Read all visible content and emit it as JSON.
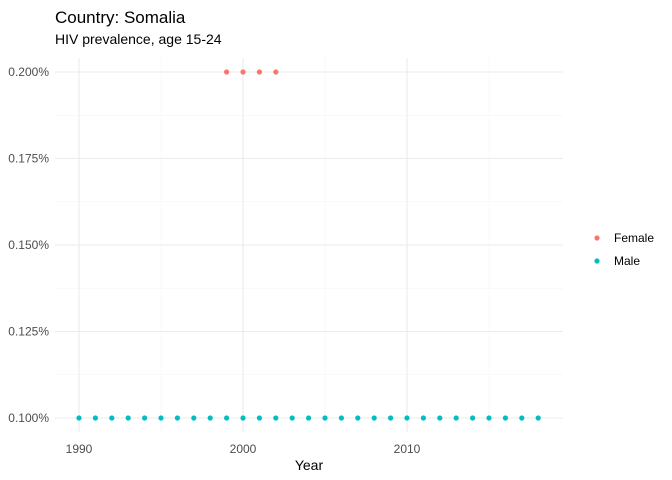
{
  "chart_data": {
    "type": "scatter",
    "title": "Country: Somalia",
    "subtitle": "HIV prevalence, age 15-24",
    "xlabel": "Year",
    "ylabel": "",
    "xlim": [
      1989,
      2019
    ],
    "ylim": [
      0.1,
      0.2
    ],
    "x_ticks": [
      1990,
      2000,
      2010
    ],
    "x_tick_labels": [
      "1990",
      "2000",
      "2010"
    ],
    "y_ticks": [
      0.1,
      0.125,
      0.15,
      0.175,
      0.2
    ],
    "y_tick_labels": [
      "0.100%",
      "0.125%",
      "0.150%",
      "0.175%",
      "0.200%"
    ],
    "grid": true,
    "legend_position": "right",
    "series": [
      {
        "name": "Female",
        "color": "#F8766D",
        "x": [
          1999,
          2000,
          2001,
          2002
        ],
        "y": [
          0.2,
          0.2,
          0.2,
          0.2
        ]
      },
      {
        "name": "Male",
        "color": "#00BFC4",
        "x": [
          1990,
          1991,
          1992,
          1993,
          1994,
          1995,
          1996,
          1997,
          1998,
          1999,
          2000,
          2001,
          2002,
          2003,
          2004,
          2005,
          2006,
          2007,
          2008,
          2009,
          2010,
          2011,
          2012,
          2013,
          2014,
          2015,
          2016,
          2017,
          2018
        ],
        "y": [
          0.1,
          0.1,
          0.1,
          0.1,
          0.1,
          0.1,
          0.1,
          0.1,
          0.1,
          0.1,
          0.1,
          0.1,
          0.1,
          0.1,
          0.1,
          0.1,
          0.1,
          0.1,
          0.1,
          0.1,
          0.1,
          0.1,
          0.1,
          0.1,
          0.1,
          0.1,
          0.1,
          0.1,
          0.1
        ]
      }
    ]
  }
}
